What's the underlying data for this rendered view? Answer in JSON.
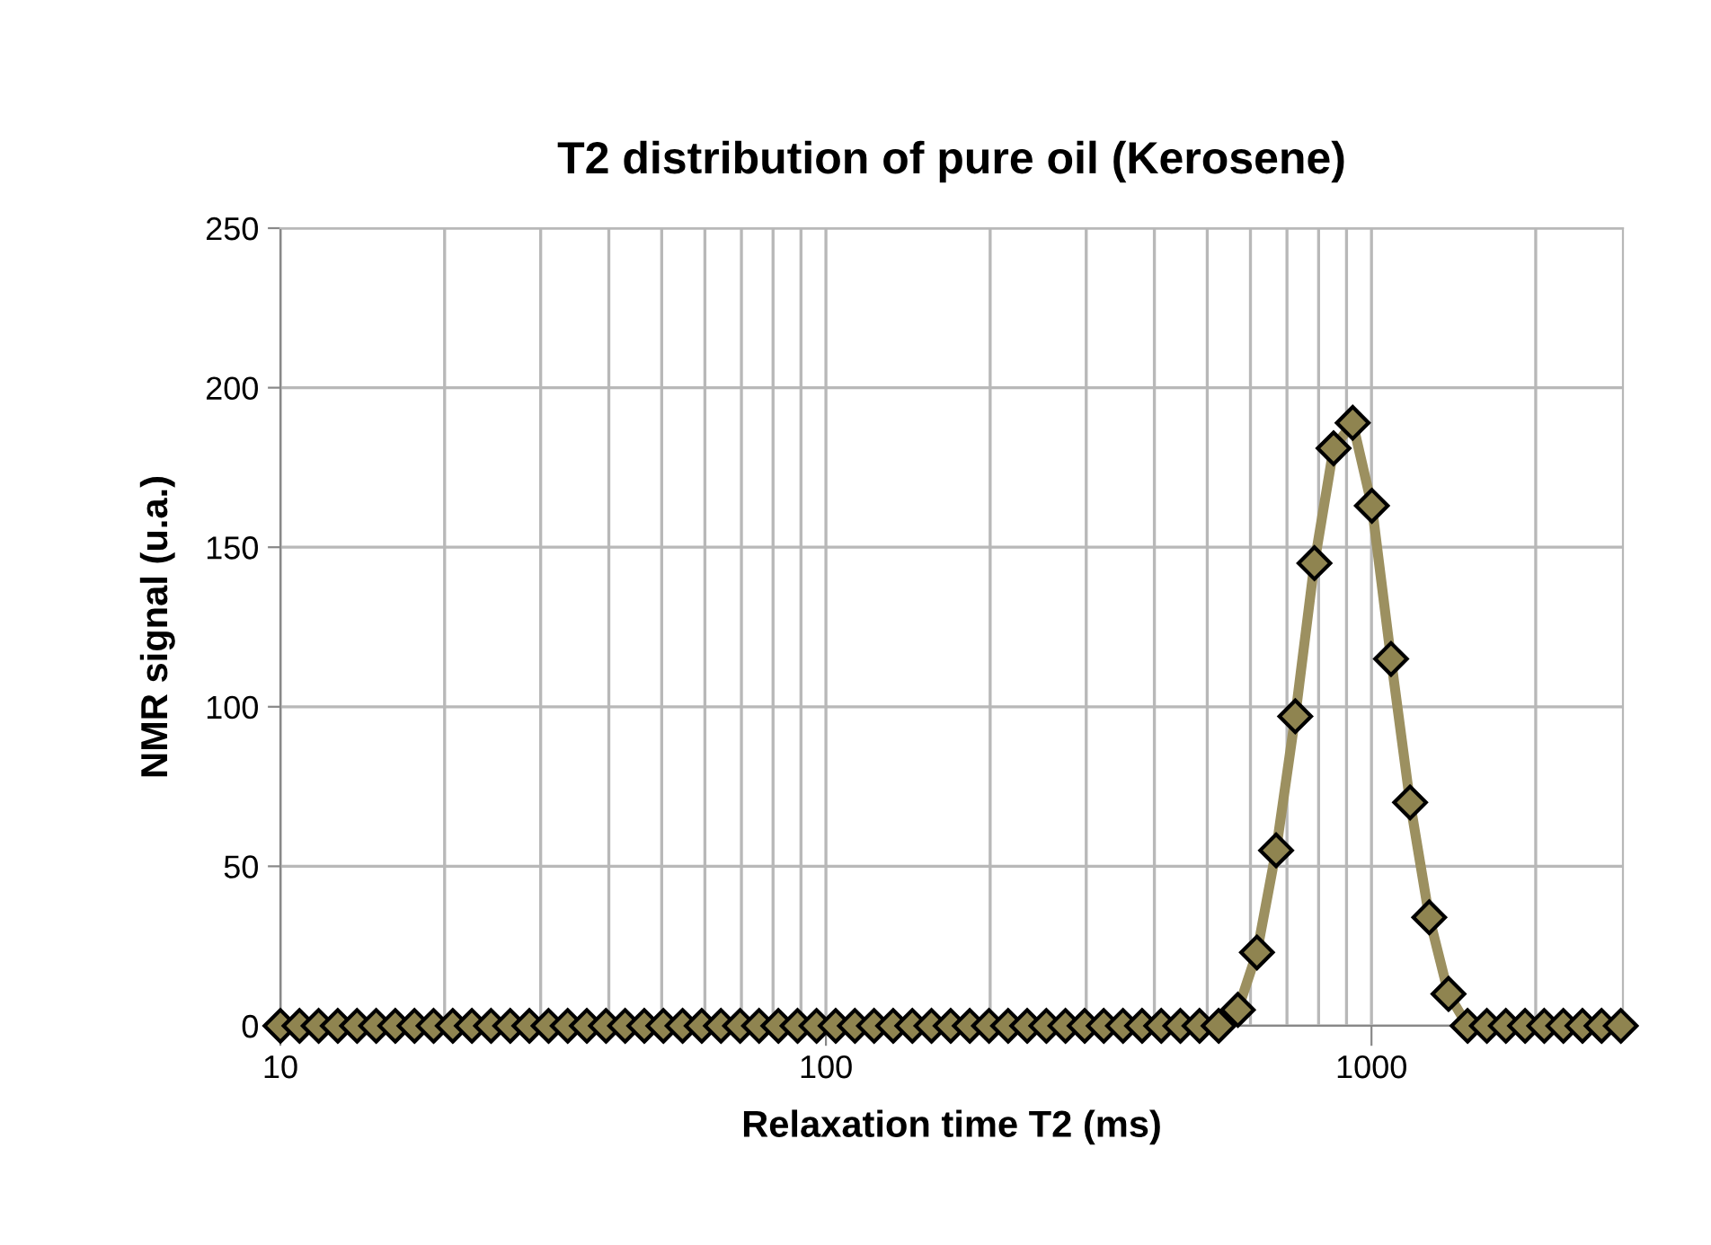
{
  "chart_data": {
    "type": "line",
    "title": "T2 distribution of pure oil (Kerosene)",
    "xlabel": "Relaxation time T2 (ms)",
    "ylabel": "NMR signal (u.a.)",
    "x": [
      10,
      10.84,
      11.75,
      12.74,
      13.82,
      14.98,
      16.24,
      17.61,
      19.09,
      20.7,
      22.44,
      24.33,
      26.38,
      28.6,
      31.01,
      33.62,
      36.45,
      39.52,
      42.84,
      46.45,
      50.35,
      54.6,
      59.2,
      64.2,
      69.6,
      75.4,
      81.8,
      88.7,
      96.1,
      104.2,
      113,
      122.5,
      132.8,
      144,
      156.1,
      169.3,
      183.5,
      199,
      215.7,
      233.8,
      253.5,
      274.8,
      298,
      323,
      350.3,
      379.7,
      411.7,
      446.3,
      483.9,
      524.6,
      568.9,
      616.7,
      668.6,
      724.9,
      786,
      852.1,
      923.8,
      1001.6,
      1086,
      1177,
      1276,
      1384,
      1500,
      1627,
      1763,
      1912,
      2073,
      2247,
      2436,
      2641,
      2864
    ],
    "series": [
      {
        "color": "#9c9060",
        "values": [
          0,
          0,
          0,
          0,
          0,
          0,
          0,
          0,
          0,
          0,
          0,
          0,
          0,
          0,
          0,
          0,
          0,
          0,
          0,
          0,
          0,
          0,
          0,
          0,
          0,
          0,
          0,
          0,
          0,
          0,
          0,
          0,
          0,
          0,
          0,
          0,
          0,
          0,
          0,
          0,
          0,
          0,
          0,
          0,
          0,
          0,
          0,
          0,
          0,
          0,
          5,
          23,
          55,
          97,
          145,
          181,
          189,
          163,
          115,
          70,
          34,
          10,
          0,
          0,
          0,
          0,
          0,
          0,
          0,
          0,
          0
        ]
      }
    ],
    "log": "x",
    "xlim": [
      10,
      2890
    ],
    "xticks": [
      10,
      100,
      1000
    ],
    "ylim": [
      0,
      250
    ],
    "yticks": [
      0,
      50,
      100,
      150,
      200,
      250
    ],
    "grid": true,
    "marker": "diamond",
    "line_style": "solid"
  }
}
